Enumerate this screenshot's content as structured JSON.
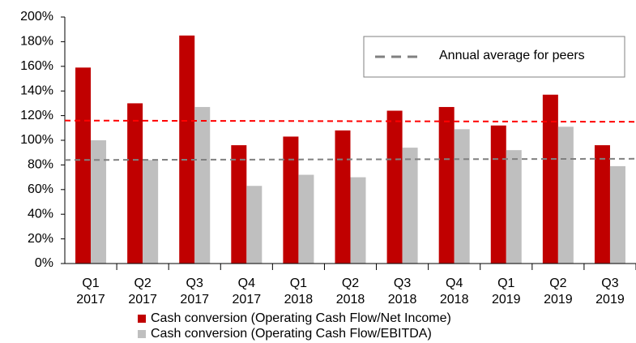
{
  "chart_data": {
    "type": "bar",
    "categories": [
      [
        "Q1",
        "2017"
      ],
      [
        "Q2",
        "2017"
      ],
      [
        "Q3",
        "2017"
      ],
      [
        "Q4",
        "2017"
      ],
      [
        "Q1",
        "2018"
      ],
      [
        "Q2",
        "2018"
      ],
      [
        "Q3",
        "2018"
      ],
      [
        "Q4",
        "2018"
      ],
      [
        "Q1",
        "2019"
      ],
      [
        "Q2",
        "2019"
      ],
      [
        "Q3",
        "2019"
      ]
    ],
    "series": [
      {
        "name": "Cash conversion (Operating Cash Flow/Net Income)",
        "color": "#c00000",
        "values": [
          159,
          130,
          185,
          96,
          103,
          108,
          124,
          127,
          112,
          137,
          96
        ]
      },
      {
        "name": "Cash conversion (Operating Cash Flow/EBITDA)",
        "color": "#bfbfbf",
        "values": [
          100,
          84,
          127,
          63,
          72,
          70,
          94,
          109,
          92,
          111,
          79
        ]
      }
    ],
    "reference_lines": [
      {
        "color": "#ff0000",
        "values": [
          116,
          115
        ]
      },
      {
        "name": "Annual average for peers",
        "color": "#808080",
        "values": [
          84,
          85
        ]
      }
    ],
    "ylim": [
      0,
      200
    ],
    "yticks": [
      {
        "value": 0,
        "label": "0%"
      },
      {
        "value": 20,
        "label": "20%"
      },
      {
        "value": 40,
        "label": "40%"
      },
      {
        "value": 60,
        "label": "60%"
      },
      {
        "value": 80,
        "label": "80%"
      },
      {
        "value": 100,
        "label": "100%"
      },
      {
        "value": 120,
        "label": "120%"
      },
      {
        "value": 140,
        "label": "140%"
      },
      {
        "value": 160,
        "label": "160%"
      },
      {
        "value": 180,
        "label": "180%"
      },
      {
        "value": 200,
        "label": "200%"
      }
    ],
    "grid": false
  }
}
